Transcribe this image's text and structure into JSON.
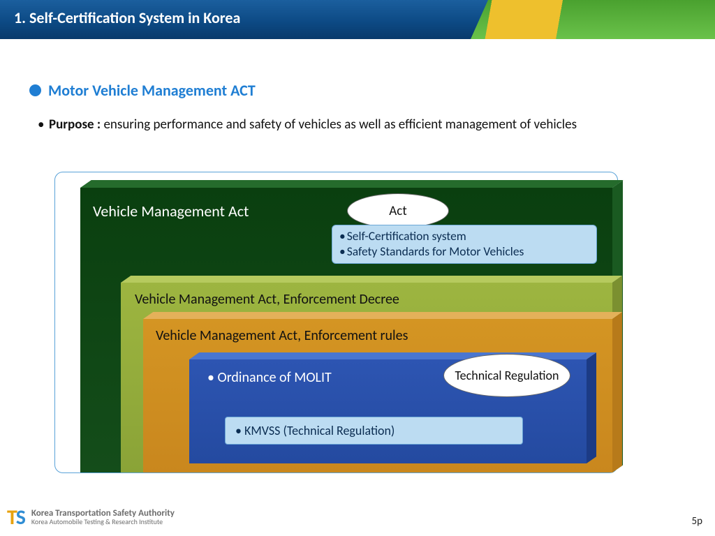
{
  "header": {
    "title": "1. Self-Certification System in Korea"
  },
  "section": {
    "heading": "Motor Vehicle Management ACT"
  },
  "purpose": {
    "label": "Purpose :",
    "text": " ensuring performance and safety of vehicles as well as efficient management of vehicles"
  },
  "diagram": {
    "border_color": "#5aa2d8",
    "levels": [
      {
        "label": "Vehicle Management Act",
        "face_a": "#0a3f0f",
        "face_b": "#144d1a",
        "top": "#256b2c",
        "right": "#1a5a21"
      },
      {
        "label": "Vehicle Management Act, Enforcement Decree",
        "face_a": "#9db540",
        "face_b": "#8aa337",
        "top": "#b6ca5e",
        "right": "#7b9030"
      },
      {
        "label": "Vehicle Management Act, Enforcement rules",
        "face_a": "#d49523",
        "face_b": "#c9871e",
        "top": "#e4b15a",
        "right": "#b77a1a"
      },
      {
        "label": "• Ordinance of MOLIT",
        "face_a": "#2d55b2",
        "face_b": "#244aa0",
        "top": "#4a76d0",
        "right": "#1c3b85"
      }
    ],
    "act_ellipse": "Act",
    "act_box_items": [
      "Self-Certification system",
      "Safety Standards for Motor Vehicles"
    ],
    "tech_ellipse": "Technical Regulation",
    "kmvss": "• KMVSS (Technical Regulation)",
    "callout_bg": "#bcdcf2",
    "callout_border": "#6ba7d6"
  },
  "footer": {
    "org_line1": "Korea Transportation Safety Authority",
    "org_line2": "Korea  Automobile Testing &  Research  Institute",
    "page": "5p"
  },
  "accent_color": "#1f7ed3"
}
